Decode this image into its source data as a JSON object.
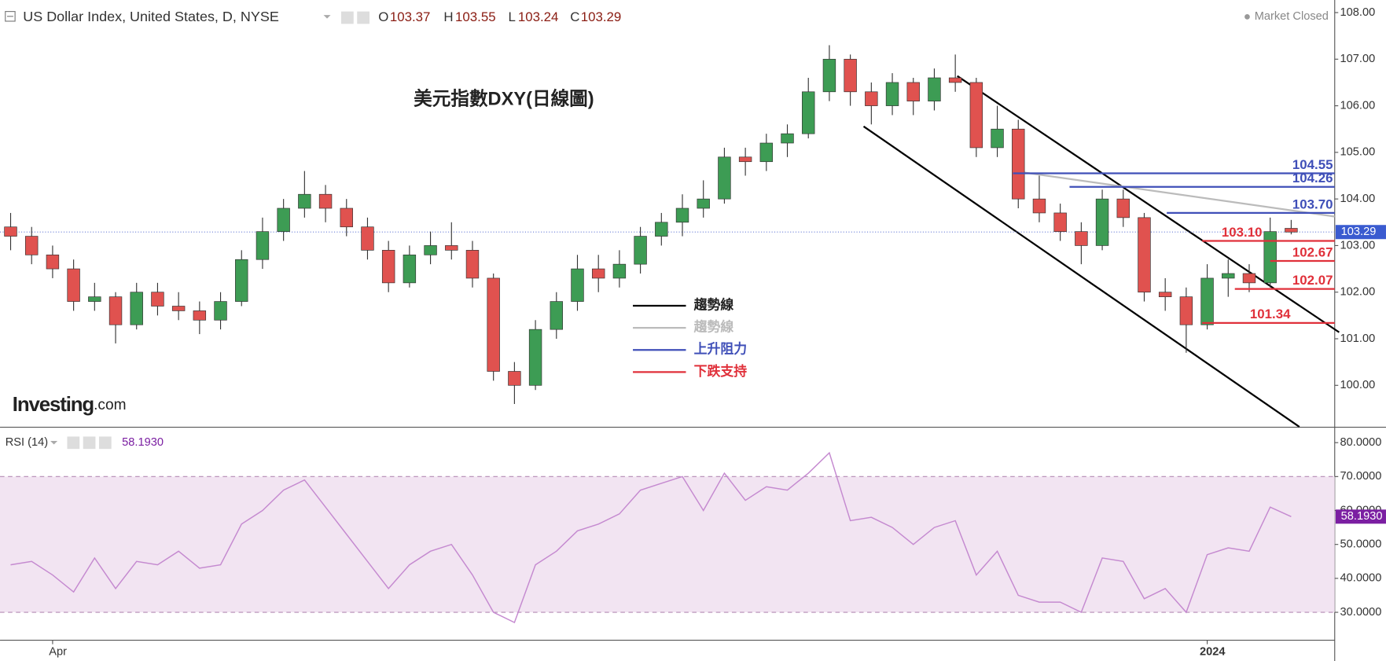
{
  "header": {
    "symbol": "US Dollar Index, United States, D, NYSE",
    "o": "O",
    "h": "H",
    "l": "L",
    "c": "C",
    "status": "Market Closed"
  },
  "logo": {
    "name": "Investing",
    "suffix": ".com"
  },
  "chart_data": {
    "type": "candlestick",
    "title": "美元指數DXY(日線圖)",
    "categories": [
      null,
      null,
      "Apr",
      null,
      null,
      null,
      null,
      null,
      null,
      null,
      null,
      null,
      null,
      null,
      null,
      null,
      null,
      null,
      null,
      null,
      null,
      null,
      null,
      null,
      null,
      null,
      null,
      null,
      null,
      null,
      null,
      null,
      null,
      null,
      null,
      null,
      null,
      null,
      null,
      null,
      null,
      null,
      null,
      null,
      null,
      null,
      null,
      null,
      null,
      null,
      null,
      null,
      null,
      null,
      null,
      null,
      null,
      "2024",
      null,
      null,
      null,
      null
    ],
    "open": [
      103.4,
      103.2,
      102.8,
      102.5,
      101.8,
      101.9,
      101.3,
      102.0,
      101.7,
      101.6,
      101.4,
      101.8,
      102.7,
      103.3,
      103.8,
      104.1,
      103.8,
      103.4,
      102.9,
      102.2,
      102.8,
      103.0,
      102.9,
      102.3,
      100.3,
      100.0,
      101.2,
      101.8,
      102.5,
      102.3,
      102.6,
      103.2,
      103.5,
      103.8,
      104.0,
      104.9,
      104.8,
      105.2,
      105.4,
      106.3,
      107.0,
      106.3,
      106.0,
      106.5,
      106.1,
      106.6,
      106.5,
      105.1,
      105.5,
      104.0,
      103.7,
      103.3,
      103.0,
      104.0,
      103.6,
      102.0,
      101.9,
      101.3,
      102.3,
      102.4,
      102.2,
      103.37
    ],
    "high": [
      103.7,
      103.4,
      103.0,
      102.7,
      102.2,
      102.0,
      102.2,
      102.2,
      102.0,
      101.8,
      102.0,
      102.9,
      103.6,
      104.0,
      104.6,
      104.3,
      104.0,
      103.6,
      103.1,
      103.0,
      103.3,
      103.5,
      103.1,
      102.4,
      100.5,
      101.4,
      102.0,
      102.8,
      102.8,
      102.9,
      103.4,
      103.7,
      104.1,
      104.4,
      105.1,
      105.1,
      105.4,
      105.6,
      106.6,
      107.3,
      107.1,
      106.5,
      106.7,
      106.6,
      106.8,
      107.1,
      106.6,
      106.0,
      105.7,
      104.5,
      103.9,
      103.5,
      104.2,
      104.2,
      103.7,
      102.3,
      102.1,
      102.6,
      102.7,
      102.6,
      103.6,
      103.55
    ],
    "low": [
      102.9,
      102.6,
      102.3,
      101.6,
      101.6,
      100.9,
      101.2,
      101.5,
      101.4,
      101.1,
      101.2,
      101.7,
      102.5,
      103.1,
      103.6,
      103.5,
      103.2,
      102.7,
      102.0,
      102.1,
      102.6,
      102.7,
      102.1,
      100.1,
      99.6,
      99.9,
      101.0,
      101.6,
      102.0,
      102.1,
      102.4,
      103.0,
      103.2,
      103.6,
      103.9,
      104.5,
      104.6,
      104.9,
      105.3,
      106.1,
      106.0,
      105.6,
      105.8,
      105.8,
      105.9,
      106.3,
      104.9,
      104.9,
      103.8,
      103.5,
      103.1,
      102.6,
      102.9,
      103.4,
      101.8,
      101.6,
      100.7,
      101.2,
      101.9,
      102.0,
      102.1,
      103.24
    ],
    "close": [
      103.2,
      102.8,
      102.5,
      101.8,
      101.9,
      101.3,
      102.0,
      101.7,
      101.6,
      101.4,
      101.8,
      102.7,
      103.3,
      103.8,
      104.1,
      103.8,
      103.4,
      102.9,
      102.2,
      102.8,
      103.0,
      102.9,
      102.3,
      100.3,
      100.0,
      101.2,
      101.8,
      102.5,
      102.3,
      102.6,
      103.2,
      103.5,
      103.8,
      104.0,
      104.9,
      104.8,
      105.2,
      105.4,
      106.3,
      107.0,
      106.3,
      106.0,
      106.5,
      106.1,
      106.6,
      106.5,
      105.1,
      105.5,
      104.0,
      103.7,
      103.3,
      103.0,
      104.0,
      103.6,
      102.0,
      101.9,
      101.3,
      102.3,
      102.4,
      102.2,
      103.3,
      103.29
    ],
    "up_color": "#3d9c54",
    "down_color": "#e0524f",
    "ylim": [
      99.11,
      108.27
    ],
    "yticks": [
      {
        "value": 100,
        "label": "100.00"
      },
      {
        "value": 101,
        "label": "101.00"
      },
      {
        "value": 102,
        "label": "102.00"
      },
      {
        "value": 103,
        "label": "103.00"
      },
      {
        "value": 104,
        "label": "104.00"
      },
      {
        "value": 105,
        "label": "105.00"
      },
      {
        "value": 106,
        "label": "106.00"
      },
      {
        "value": 107,
        "label": "107.00"
      },
      {
        "value": 108,
        "label": "108.00"
      }
    ],
    "trendlines": [
      {
        "name": "趨勢線",
        "color": "#000000"
      },
      {
        "name": "趨勢線",
        "color": "#bbbbbb"
      }
    ],
    "resistance": {
      "name": "上升阻力",
      "color": "#3f4fb8",
      "levels": [
        104.55,
        104.26,
        {
          "value": 103.7,
          "label": "103.70"
        }
      ]
    },
    "support": {
      "name": "下跌支持",
      "color": "#e0303a",
      "levels": [
        {
          "value": 103.1,
          "label": "103.10"
        },
        102.67,
        102.07,
        101.34
      ]
    },
    "rsi": {
      "type": "line",
      "name": "RSI (14)",
      "color": "#c58ad0",
      "values": [
        44,
        45,
        41,
        36,
        46,
        37,
        45,
        44,
        48,
        43,
        44,
        56,
        60,
        66,
        69,
        61,
        53,
        45,
        37,
        44,
        48,
        50,
        41,
        30,
        27,
        44,
        48,
        54,
        56,
        59,
        66,
        68,
        70,
        60,
        71,
        63,
        67,
        66,
        71,
        77,
        57,
        58,
        55,
        50,
        55,
        57,
        41,
        48,
        35,
        33,
        33,
        30,
        46,
        45,
        34,
        37,
        30,
        47,
        49,
        48,
        61,
        58.193
      ],
      "last_label": "58.1930",
      "band": [
        30,
        70
      ],
      "ylim": [
        21.9,
        84.4
      ],
      "yticks": [
        {
          "value": 30,
          "label": "30.0000"
        },
        {
          "value": 40,
          "label": "40.0000"
        },
        {
          "value": 50,
          "label": "50.0000"
        },
        {
          "value": 60,
          "label": "60.0000"
        },
        {
          "value": 70,
          "label": "70.0000"
        },
        {
          "value": 80,
          "label": "80.0000"
        }
      ]
    }
  }
}
